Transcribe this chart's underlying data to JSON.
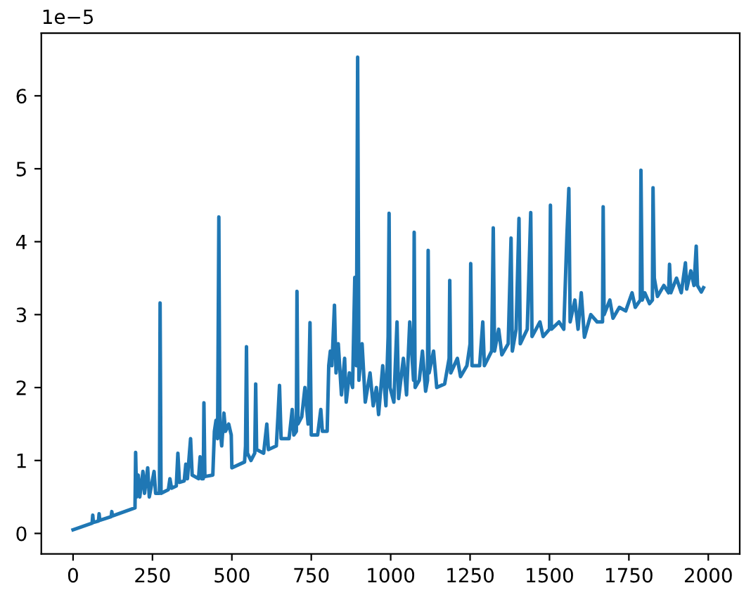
{
  "chart_data": {
    "type": "line",
    "annotations": [
      "1e−5"
    ],
    "xlim": [
      -100,
      2099
    ],
    "ylim": [
      -0.28,
      6.86
    ],
    "xticks": [
      0,
      250,
      500,
      750,
      1000,
      1250,
      1500,
      1750,
      2000
    ],
    "yticks": [
      0,
      1,
      2,
      3,
      4,
      5,
      6
    ],
    "grid": false,
    "legend": false,
    "marker": "none",
    "line_style": "solid",
    "series": [
      {
        "color": "#1f77b4",
        "x": [
          0,
          60,
          62,
          64,
          80,
          82,
          84,
          120,
          122,
          124,
          195,
          197,
          200,
          205,
          210,
          220,
          225,
          235,
          240,
          255,
          260,
          272,
          274,
          277,
          300,
          305,
          310,
          325,
          330,
          335,
          350,
          355,
          360,
          370,
          375,
          395,
          400,
          405,
          410,
          412,
          415,
          440,
          445,
          450,
          455,
          459,
          462,
          468,
          475,
          480,
          490,
          498,
          500,
          540,
          543,
          546,
          549,
          560,
          572,
          575,
          578,
          600,
          610,
          615,
          640,
          645,
          650,
          655,
          680,
          690,
          695,
          703,
          705,
          708,
          720,
          730,
          740,
          746,
          750,
          770,
          780,
          785,
          800,
          805,
          810,
          815,
          823,
          828,
          835,
          845,
          855,
          860,
          870,
          880,
          887,
          892,
          896,
          900,
          910,
          920,
          935,
          945,
          955,
          962,
          975,
          985,
          992,
          995,
          998,
          1010,
          1020,
          1025,
          1040,
          1050,
          1060,
          1072,
          1074,
          1077,
          1090,
          1100,
          1110,
          1116,
          1118,
          1121,
          1135,
          1145,
          1170,
          1180,
          1184,
          1186,
          1189,
          1210,
          1220,
          1240,
          1250,
          1252,
          1256,
          1280,
          1290,
          1295,
          1318,
          1323,
          1327,
          1340,
          1350,
          1370,
          1379,
          1383,
          1395,
          1404,
          1408,
          1430,
          1441,
          1445,
          1470,
          1480,
          1500,
          1503,
          1506,
          1530,
          1545,
          1555,
          1561,
          1565,
          1580,
          1590,
          1600,
          1610,
          1630,
          1650,
          1667,
          1669,
          1672,
          1690,
          1700,
          1720,
          1740,
          1760,
          1770,
          1786,
          1788,
          1792,
          1800,
          1815,
          1824,
          1826,
          1830,
          1840,
          1860,
          1875,
          1878,
          1882,
          1900,
          1915,
          1928,
          1932,
          1945,
          1955,
          1962,
          1966,
          1978,
          1985
        ],
        "values": [
          0.05,
          0.14,
          0.25,
          0.15,
          0.17,
          0.27,
          0.18,
          0.23,
          0.3,
          0.24,
          0.35,
          1.11,
          0.5,
          0.8,
          0.5,
          0.85,
          0.55,
          0.9,
          0.5,
          0.85,
          0.55,
          0.55,
          3.16,
          0.55,
          0.6,
          0.75,
          0.62,
          0.65,
          1.1,
          0.7,
          0.72,
          0.95,
          0.75,
          1.3,
          0.8,
          0.75,
          1.05,
          0.75,
          0.75,
          1.79,
          0.78,
          0.8,
          1.4,
          1.55,
          1.3,
          4.34,
          1.5,
          1.2,
          1.65,
          1.4,
          1.5,
          1.35,
          0.9,
          0.98,
          1.2,
          2.56,
          1.1,
          1.0,
          1.1,
          2.05,
          1.15,
          1.1,
          1.5,
          1.15,
          1.2,
          1.6,
          2.03,
          1.3,
          1.3,
          1.7,
          1.35,
          1.4,
          3.32,
          1.5,
          1.6,
          2.0,
          1.5,
          2.89,
          1.35,
          1.35,
          1.7,
          1.4,
          1.4,
          2.3,
          2.5,
          2.3,
          3.13,
          2.2,
          2.6,
          1.9,
          2.4,
          1.8,
          2.2,
          2.0,
          3.51,
          2.3,
          6.53,
          2.1,
          2.6,
          1.8,
          2.2,
          1.75,
          2.0,
          1.63,
          2.3,
          1.75,
          2.7,
          4.39,
          2.0,
          1.8,
          2.9,
          1.85,
          2.4,
          1.9,
          2.9,
          2.1,
          4.13,
          2.0,
          2.1,
          2.5,
          1.95,
          2.1,
          3.88,
          2.2,
          2.5,
          2.0,
          2.05,
          2.3,
          2.4,
          3.47,
          2.2,
          2.4,
          2.15,
          2.3,
          2.6,
          3.7,
          2.3,
          2.3,
          2.9,
          2.3,
          2.5,
          4.19,
          2.5,
          2.8,
          2.45,
          2.6,
          4.05,
          2.5,
          2.8,
          4.32,
          2.6,
          2.8,
          4.4,
          2.7,
          2.9,
          2.7,
          2.8,
          4.5,
          2.8,
          2.9,
          2.8,
          4.1,
          4.73,
          2.9,
          3.2,
          2.8,
          3.3,
          2.69,
          3.0,
          2.9,
          2.9,
          4.48,
          3.0,
          3.2,
          2.95,
          3.1,
          3.05,
          3.3,
          3.1,
          3.2,
          4.98,
          3.2,
          3.3,
          3.15,
          3.2,
          4.74,
          3.5,
          3.25,
          3.4,
          3.3,
          3.69,
          3.3,
          3.5,
          3.3,
          3.71,
          3.35,
          3.6,
          3.4,
          3.94,
          3.4,
          3.31,
          3.37
        ]
      }
    ]
  }
}
